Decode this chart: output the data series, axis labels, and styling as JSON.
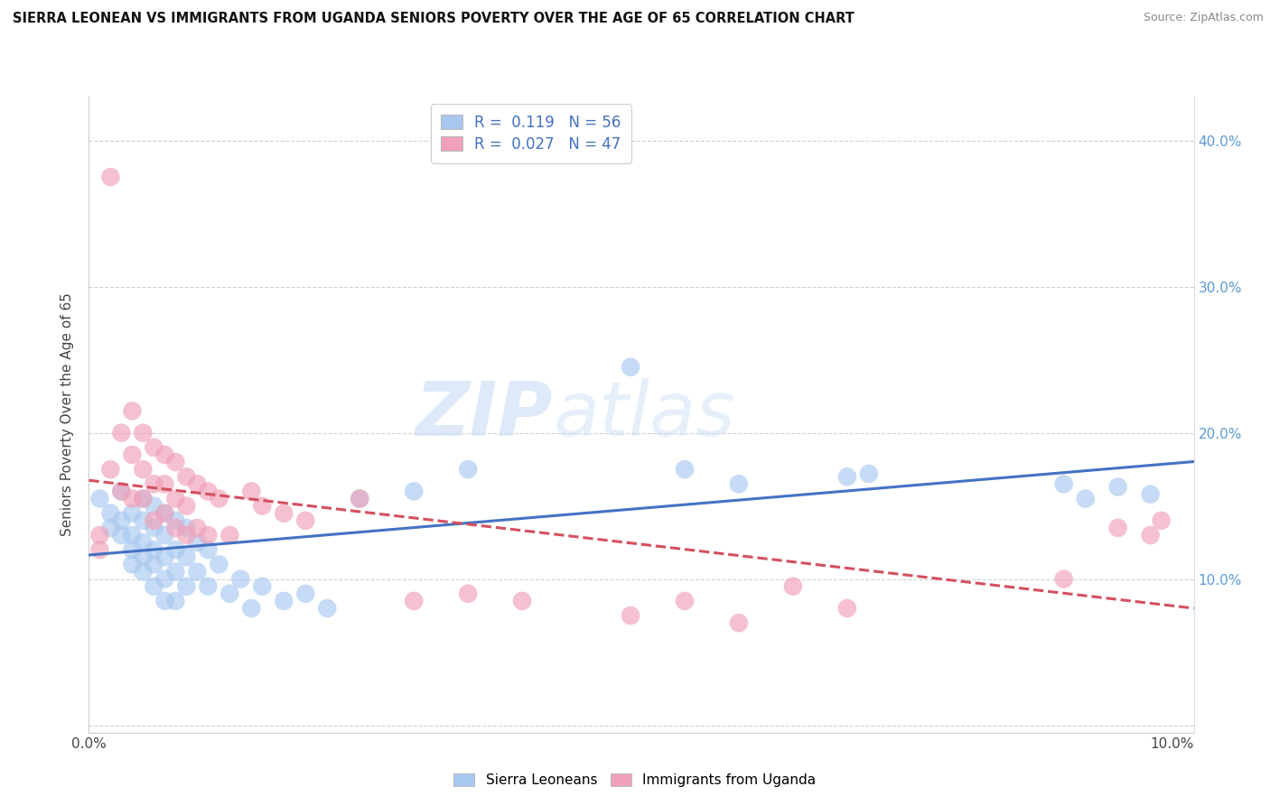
{
  "title": "SIERRA LEONEAN VS IMMIGRANTS FROM UGANDA SENIORS POVERTY OVER THE AGE OF 65 CORRELATION CHART",
  "source": "Source: ZipAtlas.com",
  "ylabel": "Seniors Poverty Over the Age of 65",
  "xlim": [
    0.0,
    0.102
  ],
  "ylim": [
    -0.005,
    0.43
  ],
  "xtick_positions": [
    0.0,
    0.02,
    0.04,
    0.06,
    0.08,
    0.1
  ],
  "xticklabels": [
    "0.0%",
    "",
    "",
    "",
    "",
    "10.0%"
  ],
  "ytick_positions": [
    0.0,
    0.1,
    0.2,
    0.3,
    0.4
  ],
  "ytick_left_labels": [
    "",
    "",
    "",
    "",
    ""
  ],
  "ytick_right_labels": [
    "",
    "10.0%",
    "20.0%",
    "30.0%",
    "40.0%"
  ],
  "blue_R": 0.119,
  "blue_N": 56,
  "pink_R": 0.027,
  "pink_N": 47,
  "blue_color": "#a8c8f0",
  "pink_color": "#f0a0b8",
  "blue_line_color": "#4472c4",
  "pink_line_color": "#d45060",
  "legend_label_blue": "Sierra Leoneans",
  "legend_label_pink": "Immigrants from Uganda",
  "watermark_zip": "ZIP",
  "watermark_atlas": "atlas",
  "blue_scatter_x": [
    0.001,
    0.002,
    0.002,
    0.003,
    0.003,
    0.003,
    0.004,
    0.004,
    0.004,
    0.004,
    0.005,
    0.005,
    0.005,
    0.005,
    0.005,
    0.006,
    0.006,
    0.006,
    0.006,
    0.006,
    0.007,
    0.007,
    0.007,
    0.007,
    0.007,
    0.008,
    0.008,
    0.008,
    0.008,
    0.009,
    0.009,
    0.009,
    0.01,
    0.01,
    0.011,
    0.011,
    0.012,
    0.013,
    0.014,
    0.015,
    0.016,
    0.018,
    0.02,
    0.022,
    0.025,
    0.03,
    0.035,
    0.05,
    0.055,
    0.06,
    0.07,
    0.072,
    0.09,
    0.092,
    0.095,
    0.098
  ],
  "blue_scatter_y": [
    0.155,
    0.145,
    0.135,
    0.16,
    0.14,
    0.13,
    0.145,
    0.13,
    0.12,
    0.11,
    0.155,
    0.14,
    0.125,
    0.115,
    0.105,
    0.15,
    0.135,
    0.12,
    0.11,
    0.095,
    0.145,
    0.13,
    0.115,
    0.1,
    0.085,
    0.14,
    0.12,
    0.105,
    0.085,
    0.135,
    0.115,
    0.095,
    0.125,
    0.105,
    0.12,
    0.095,
    0.11,
    0.09,
    0.1,
    0.08,
    0.095,
    0.085,
    0.09,
    0.08,
    0.155,
    0.16,
    0.175,
    0.245,
    0.175,
    0.165,
    0.17,
    0.172,
    0.165,
    0.155,
    0.163,
    0.158
  ],
  "pink_scatter_x": [
    0.001,
    0.001,
    0.002,
    0.002,
    0.003,
    0.003,
    0.004,
    0.004,
    0.004,
    0.005,
    0.005,
    0.005,
    0.006,
    0.006,
    0.006,
    0.007,
    0.007,
    0.007,
    0.008,
    0.008,
    0.008,
    0.009,
    0.009,
    0.009,
    0.01,
    0.01,
    0.011,
    0.011,
    0.012,
    0.013,
    0.015,
    0.016,
    0.018,
    0.02,
    0.025,
    0.03,
    0.035,
    0.04,
    0.05,
    0.055,
    0.06,
    0.065,
    0.07,
    0.09,
    0.095,
    0.098,
    0.099
  ],
  "pink_scatter_y": [
    0.13,
    0.12,
    0.375,
    0.175,
    0.2,
    0.16,
    0.215,
    0.185,
    0.155,
    0.2,
    0.175,
    0.155,
    0.19,
    0.165,
    0.14,
    0.185,
    0.165,
    0.145,
    0.18,
    0.155,
    0.135,
    0.17,
    0.15,
    0.13,
    0.165,
    0.135,
    0.16,
    0.13,
    0.155,
    0.13,
    0.16,
    0.15,
    0.145,
    0.14,
    0.155,
    0.085,
    0.09,
    0.085,
    0.075,
    0.085,
    0.07,
    0.095,
    0.08,
    0.1,
    0.135,
    0.13,
    0.14
  ]
}
